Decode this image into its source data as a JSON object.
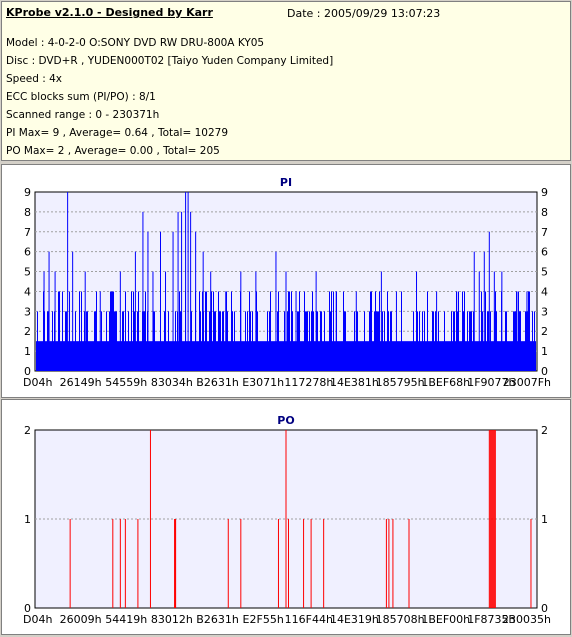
{
  "header": {
    "title": "KProbe v2.1.0 - Designed by Karr",
    "date": "Date : 2005/09/29 13:07:23",
    "lines": [
      "Model : 4-0-2-0 O:SONY    DVD RW DRU-800A  KY05",
      "Disc : DVD+R , YUDEN000T02 [Taiyo Yuden Company Limited]",
      "Speed : 4x",
      "ECC blocks sum (PI/PO) : 8/1",
      "Scanned range : 0 - 230371h",
      "PI Max= 9 , Average= 0.64 , Total= 10279",
      "PO Max= 2 , Average= 0.00 , Total= 205"
    ]
  },
  "colors": {
    "pi": "#0000ff",
    "po": "#ff0000",
    "title": "#000080",
    "bg": "#f0f0ff"
  },
  "chart_data": [
    {
      "type": "bar",
      "title": "PI",
      "ylim": [
        0,
        9
      ],
      "yticks": [
        "0",
        "1",
        "2",
        "3",
        "4",
        "5",
        "6",
        "7",
        "8",
        "9"
      ],
      "xticks": [
        "D04h",
        "26149h",
        "54559h",
        "83034h",
        "B2631h",
        "E3071h",
        "117278h",
        "14E381h",
        "185795h",
        "1BEF68h",
        "1F9077h",
        "23007Fh"
      ],
      "spikes": [
        {
          "x": 0.018,
          "y": 5
        },
        {
          "x": 0.028,
          "y": 6
        },
        {
          "x": 0.04,
          "y": 5
        },
        {
          "x": 0.065,
          "y": 9
        },
        {
          "x": 0.075,
          "y": 6
        },
        {
          "x": 0.1,
          "y": 5
        },
        {
          "x": 0.13,
          "y": 4
        },
        {
          "x": 0.17,
          "y": 5
        },
        {
          "x": 0.2,
          "y": 6
        },
        {
          "x": 0.215,
          "y": 8
        },
        {
          "x": 0.225,
          "y": 7
        },
        {
          "x": 0.235,
          "y": 5
        },
        {
          "x": 0.25,
          "y": 7
        },
        {
          "x": 0.26,
          "y": 5
        },
        {
          "x": 0.275,
          "y": 7
        },
        {
          "x": 0.285,
          "y": 8
        },
        {
          "x": 0.292,
          "y": 8
        },
        {
          "x": 0.3,
          "y": 9
        },
        {
          "x": 0.305,
          "y": 9
        },
        {
          "x": 0.31,
          "y": 8
        },
        {
          "x": 0.32,
          "y": 7
        },
        {
          "x": 0.335,
          "y": 6
        },
        {
          "x": 0.35,
          "y": 5
        },
        {
          "x": 0.38,
          "y": 4
        },
        {
          "x": 0.41,
          "y": 5
        },
        {
          "x": 0.44,
          "y": 5
        },
        {
          "x": 0.48,
          "y": 6
        },
        {
          "x": 0.5,
          "y": 5
        },
        {
          "x": 0.52,
          "y": 4
        },
        {
          "x": 0.56,
          "y": 5
        },
        {
          "x": 0.6,
          "y": 4
        },
        {
          "x": 0.64,
          "y": 4
        },
        {
          "x": 0.69,
          "y": 5
        },
        {
          "x": 0.72,
          "y": 4
        },
        {
          "x": 0.76,
          "y": 5
        },
        {
          "x": 0.8,
          "y": 4
        },
        {
          "x": 0.84,
          "y": 4
        },
        {
          "x": 0.875,
          "y": 6
        },
        {
          "x": 0.885,
          "y": 5
        },
        {
          "x": 0.895,
          "y": 6
        },
        {
          "x": 0.905,
          "y": 7
        },
        {
          "x": 0.915,
          "y": 5
        },
        {
          "x": 0.93,
          "y": 5
        },
        {
          "x": 0.96,
          "y": 4
        },
        {
          "x": 0.98,
          "y": 4
        }
      ]
    },
    {
      "type": "bar",
      "title": "PO",
      "ylim": [
        0,
        2
      ],
      "yticks": [
        "0",
        "1",
        "2"
      ],
      "xticks": [
        "D04h",
        "26009h",
        "54419h",
        "83012h",
        "B2631h",
        "E2F55h",
        "116F44h",
        "14E319h",
        "185708h",
        "1BEF00h",
        "1F8735h",
        "230035h"
      ],
      "spikes": [
        {
          "x": 0.07,
          "y": 1
        },
        {
          "x": 0.155,
          "y": 1
        },
        {
          "x": 0.17,
          "y": 1
        },
        {
          "x": 0.18,
          "y": 1
        },
        {
          "x": 0.205,
          "y": 1
        },
        {
          "x": 0.23,
          "y": 2
        },
        {
          "x": 0.278,
          "y": 1
        },
        {
          "x": 0.28,
          "y": 1
        },
        {
          "x": 0.28,
          "y": 1
        },
        {
          "x": 0.385,
          "y": 1
        },
        {
          "x": 0.41,
          "y": 1
        },
        {
          "x": 0.485,
          "y": 1
        },
        {
          "x": 0.5,
          "y": 2
        },
        {
          "x": 0.505,
          "y": 1
        },
        {
          "x": 0.535,
          "y": 1
        },
        {
          "x": 0.55,
          "y": 1
        },
        {
          "x": 0.575,
          "y": 1
        },
        {
          "x": 0.7,
          "y": 1
        },
        {
          "x": 0.705,
          "y": 1
        },
        {
          "x": 0.713,
          "y": 1
        },
        {
          "x": 0.745,
          "y": 1
        },
        {
          "x": 0.905,
          "y": 2
        },
        {
          "x": 0.907,
          "y": 2
        },
        {
          "x": 0.909,
          "y": 2
        },
        {
          "x": 0.911,
          "y": 2
        },
        {
          "x": 0.913,
          "y": 2
        },
        {
          "x": 0.915,
          "y": 2
        },
        {
          "x": 0.917,
          "y": 2
        },
        {
          "x": 0.988,
          "y": 1
        }
      ]
    }
  ]
}
